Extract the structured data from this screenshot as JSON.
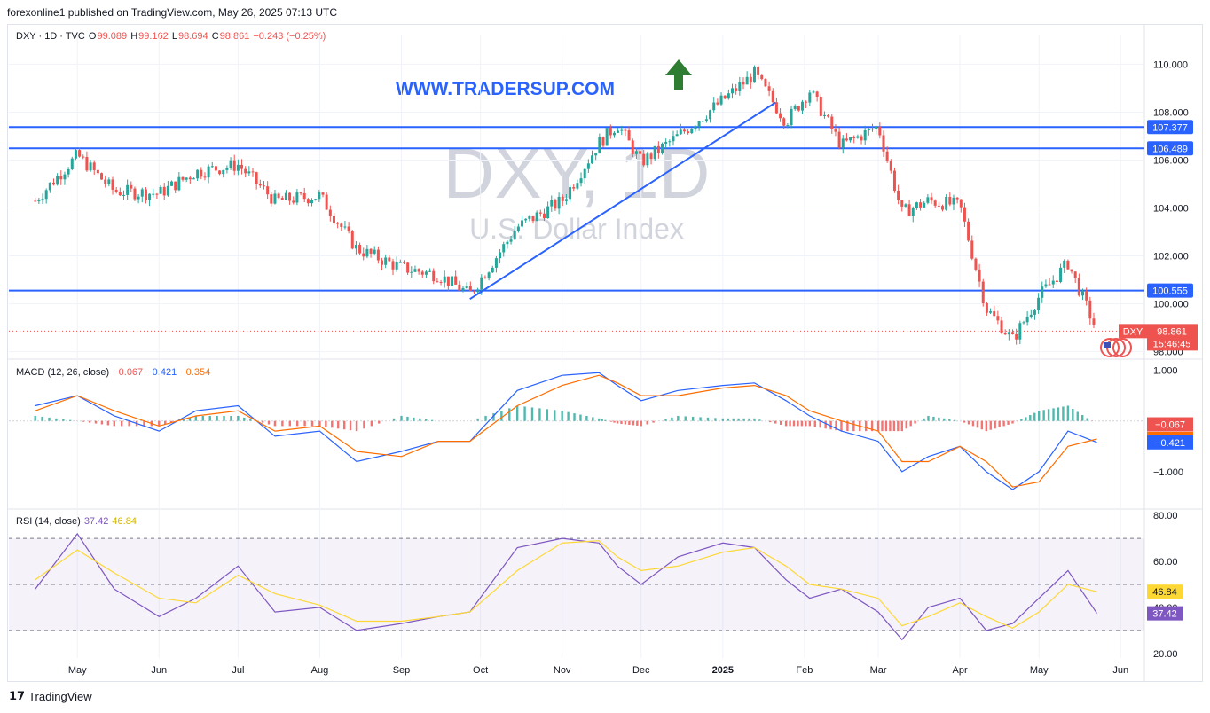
{
  "header": {
    "published_text": "forexonline1 published on TradingView.com, May 26, 2025 07:13 UTC"
  },
  "symbol_info": {
    "name": "DXY · 1D · TVC",
    "open_label": "O",
    "open": "99.089",
    "high_label": "H",
    "high": "99.162",
    "low_label": "L",
    "low": "98.694",
    "close_label": "C",
    "close": "98.861",
    "change": "−0.243 (−0.25%)"
  },
  "watermark": {
    "symbol": "DXY, 1D",
    "description": "U.S. Dollar Index"
  },
  "annotation_text": "WWW.TRADERSUP.COM",
  "price_badge": {
    "symbol": "DXY",
    "price": "98.861",
    "countdown": "15:46:45"
  },
  "macd": {
    "label": "MACD (12, 26, close)",
    "hist": "−0.067",
    "macd": "−0.421",
    "signal": "−0.354"
  },
  "rsi": {
    "label": "RSI (14, close)",
    "rsi": "37.42",
    "ma": "46.84"
  },
  "footer": {
    "brand": "TradingView"
  },
  "colors": {
    "up": "#26a69a",
    "down": "#ef5350",
    "blue_line": "#2962ff",
    "macd_line": "#2962ff",
    "signal_line": "#ff6d00",
    "rsi_line": "#7e57c2",
    "rsi_ma": "#fdd835",
    "arrow": "#2e7d32"
  },
  "chart_data": [
    {
      "type": "candlestick",
      "title": "DXY · 1D · TVC",
      "x_ticks": [
        "May",
        "Jun",
        "Jul",
        "Aug",
        "Sep",
        "Oct",
        "Nov",
        "Dec",
        "2025",
        "Feb",
        "Mar",
        "Apr",
        "May",
        "Jun"
      ],
      "y_ticks": [
        "110.000",
        "108.000",
        "106.000",
        "104.000",
        "102.000",
        "100.000",
        "98.000"
      ],
      "ylim": [
        97.8,
        111.2
      ],
      "horizontal_levels": [
        {
          "value": 107.377,
          "label": "107.377"
        },
        {
          "value": 106.489,
          "label": "106.489"
        },
        {
          "value": 100.555,
          "label": "100.555"
        }
      ],
      "trendline": {
        "from": {
          "x": "Sep 27, 2024",
          "y": 100.2
        },
        "to": {
          "x": "Jan 21, 2025",
          "y": 108.4
        }
      },
      "last_price": 98.861,
      "x": [
        "2024-04-15",
        "2024-05-01",
        "2024-05-15",
        "2024-06-01",
        "2024-06-15",
        "2024-07-01",
        "2024-07-15",
        "2024-08-01",
        "2024-08-15",
        "2024-09-01",
        "2024-09-15",
        "2024-09-27",
        "2024-10-15",
        "2024-11-01",
        "2024-11-15",
        "2024-11-22",
        "2024-12-01",
        "2024-12-15",
        "2025-01-01",
        "2025-01-13",
        "2025-01-25",
        "2025-02-03",
        "2025-02-15",
        "2025-03-01",
        "2025-03-10",
        "2025-03-20",
        "2025-04-01",
        "2025-04-11",
        "2025-04-21",
        "2025-05-01",
        "2025-05-12",
        "2025-05-23"
      ],
      "close": [
        104.3,
        106.2,
        104.7,
        104.6,
        105.5,
        105.8,
        104.3,
        104.5,
        102.3,
        101.5,
        101.2,
        100.4,
        103.2,
        104.3,
        106.7,
        107.5,
        105.9,
        107.0,
        108.5,
        109.6,
        107.6,
        108.9,
        106.6,
        107.4,
        103.8,
        104.3,
        104.1,
        99.8,
        98.5,
        100.3,
        101.7,
        98.861
      ]
    },
    {
      "type": "line",
      "title": "MACD (12, 26, close)",
      "y_ticks": [
        "1.000",
        "−1.000"
      ],
      "ylim": [
        -1.7,
        1.2
      ],
      "series": [
        {
          "name": "MACD",
          "values": [
            0.3,
            0.5,
            0.1,
            -0.2,
            0.2,
            0.3,
            -0.3,
            -0.2,
            -0.8,
            -0.6,
            -0.4,
            -0.4,
            0.6,
            0.9,
            0.95,
            0.7,
            0.4,
            0.6,
            0.7,
            0.75,
            0.4,
            0.1,
            -0.2,
            -0.4,
            -1.0,
            -0.7,
            -0.5,
            -1.0,
            -1.35,
            -1.0,
            -0.2,
            -0.421
          ]
        },
        {
          "name": "Signal",
          "values": [
            0.2,
            0.5,
            0.2,
            -0.1,
            0.1,
            0.2,
            -0.2,
            -0.1,
            -0.6,
            -0.7,
            -0.4,
            -0.4,
            0.3,
            0.7,
            0.9,
            0.75,
            0.5,
            0.5,
            0.65,
            0.7,
            0.5,
            0.2,
            0.0,
            -0.2,
            -0.8,
            -0.8,
            -0.5,
            -0.8,
            -1.3,
            -1.2,
            -0.5,
            -0.354
          ]
        },
        {
          "name": "Histogram",
          "values": [
            0.1,
            0.0,
            -0.1,
            -0.1,
            0.1,
            0.1,
            -0.1,
            -0.1,
            -0.2,
            0.1,
            0.0,
            0.0,
            0.3,
            0.2,
            0.05,
            -0.05,
            -0.1,
            0.1,
            0.05,
            0.05,
            -0.1,
            -0.1,
            -0.2,
            -0.2,
            -0.2,
            0.1,
            0.0,
            -0.2,
            -0.05,
            0.2,
            0.3,
            -0.067
          ]
        }
      ]
    },
    {
      "type": "line",
      "title": "RSI (14, close)",
      "y_ticks": [
        "80.00",
        "60.00",
        "40.00",
        "20.00"
      ],
      "ylim": [
        18,
        82
      ],
      "bands": [
        30,
        50,
        70
      ],
      "series": [
        {
          "name": "RSI",
          "values": [
            48,
            72,
            48,
            36,
            44,
            58,
            38,
            40,
            30,
            33,
            36,
            38,
            66,
            70,
            68,
            58,
            50,
            62,
            68,
            66,
            52,
            44,
            48,
            38,
            26,
            40,
            44,
            30,
            33,
            44,
            56,
            37.42
          ]
        },
        {
          "name": "RSI-based MA",
          "values": [
            52,
            65,
            55,
            44,
            42,
            54,
            46,
            41,
            34,
            34,
            36,
            38,
            56,
            68,
            69,
            62,
            56,
            58,
            64,
            66,
            58,
            50,
            48,
            44,
            32,
            36,
            42,
            36,
            31,
            38,
            50,
            46.84
          ]
        }
      ]
    }
  ]
}
